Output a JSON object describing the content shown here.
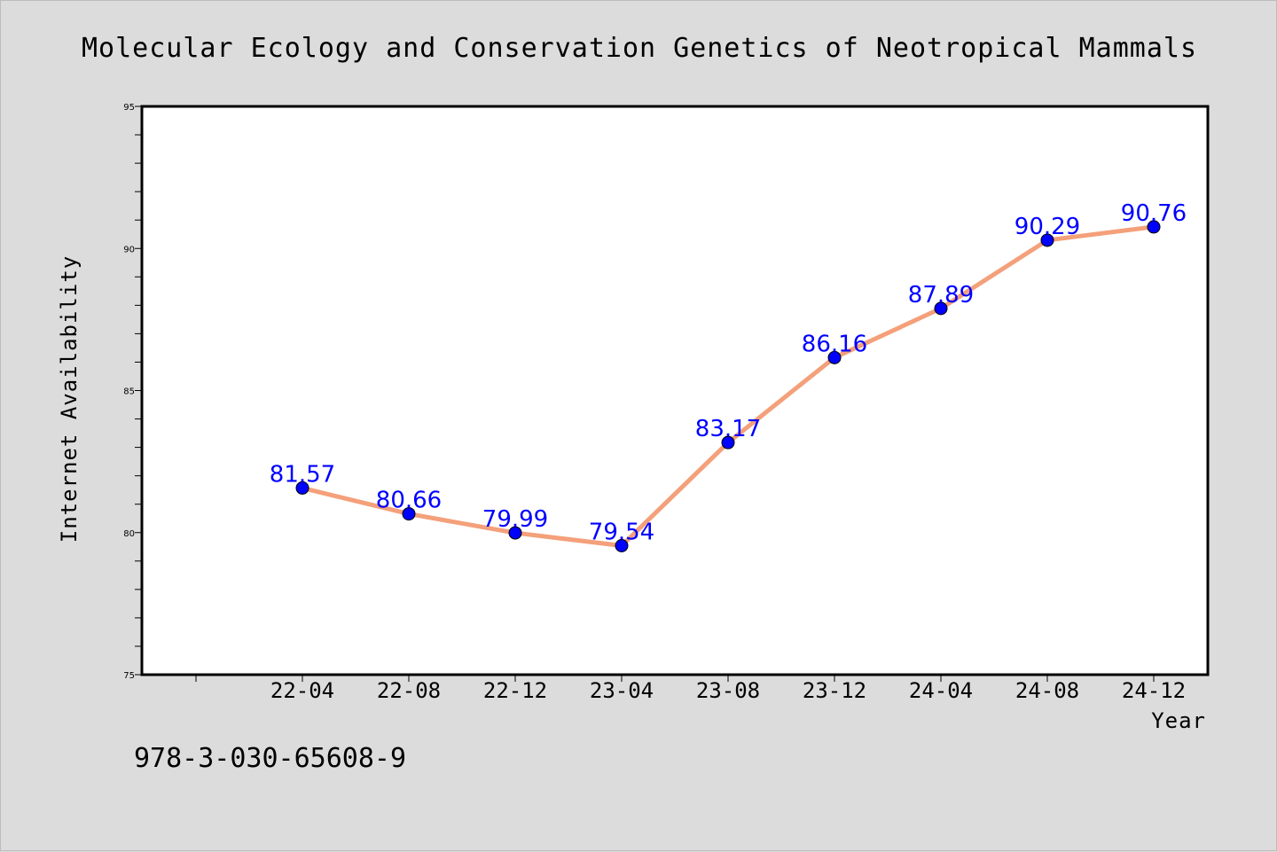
{
  "chart_data": {
    "type": "line",
    "title": "Molecular Ecology and Conservation Genetics of Neotropical Mammals",
    "xlabel": "Year",
    "ylabel": "Internet Availability",
    "categories": [
      "22-04",
      "22-08",
      "22-12",
      "23-04",
      "23-08",
      "23-12",
      "24-04",
      "24-08",
      "24-12"
    ],
    "series": [
      {
        "values": [
          81.57,
          80.66,
          79.99,
          79.54,
          83.17,
          86.16,
          87.89,
          90.29,
          90.76
        ],
        "data_labels": [
          "81.57",
          "80.66",
          "79.99",
          "79.54",
          "83.17",
          "86.16",
          "87.89",
          "90.29",
          "90.76"
        ],
        "line_color": "#f4a07a",
        "marker_color": "#0000ff"
      }
    ],
    "ylim": [
      75,
      95
    ],
    "yticks": [
      "75",
      "80",
      "85",
      "90",
      "95"
    ],
    "grid": false,
    "legend": "none",
    "label_color": "#0000ff",
    "background_color": "#dcdcdc",
    "plot_background_color": "#ffffff"
  },
  "footnote": "978-3-030-65608-9"
}
